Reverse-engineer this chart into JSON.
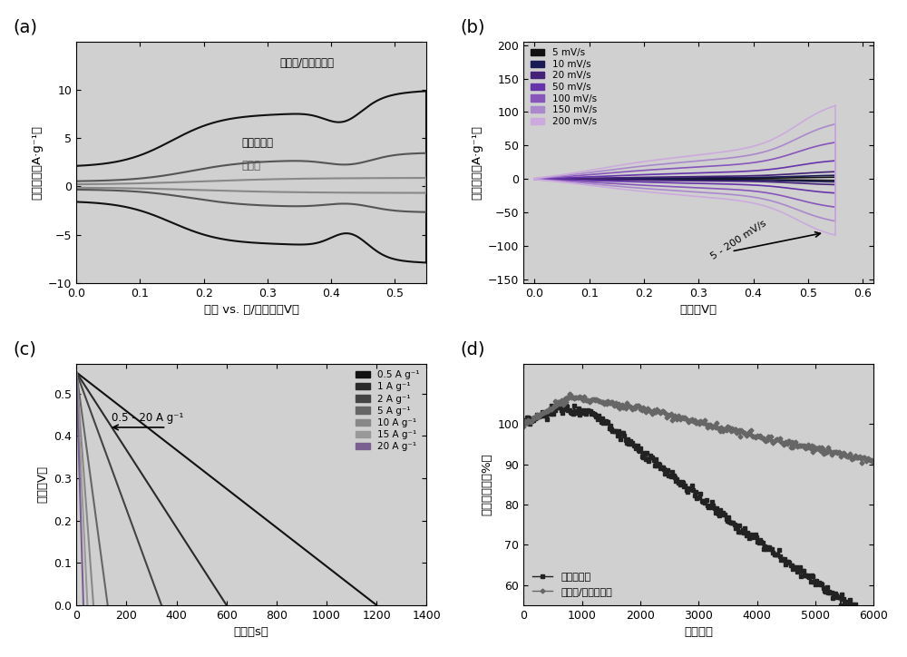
{
  "fig_width": 10.0,
  "fig_height": 7.24,
  "panel_bg": "#d0d0d0",
  "a_xlabel": "电势 vs. 汞/氧化汞（V）",
  "a_ylabel": "电流密度（A·g⁻¹）",
  "a_xlim": [
    0.0,
    0.55
  ],
  "a_ylim": [
    -10,
    15
  ],
  "a_xticks": [
    0.0,
    0.1,
    0.2,
    0.3,
    0.4,
    0.5
  ],
  "a_yticks": [
    -10,
    -5,
    0,
    5,
    10
  ],
  "a_label0": "硫化馒/四氧化三饒",
  "a_label1": "四氧化三饒",
  "a_label2": "硫化馒",
  "b_xlabel": "电势（V）",
  "b_ylabel": "电流密度（A·g⁻¹）",
  "b_xlim": [
    -0.02,
    0.62
  ],
  "b_ylim": [
    -155,
    205
  ],
  "b_xticks": [
    0.0,
    0.1,
    0.2,
    0.3,
    0.4,
    0.5,
    0.6
  ],
  "b_yticks": [
    -150,
    -100,
    -50,
    0,
    50,
    100,
    150,
    200
  ],
  "b_scan_rates": [
    5,
    10,
    20,
    50,
    100,
    150,
    200
  ],
  "b_labels": [
    "5 mV/s",
    "10 mV/s",
    "20 mV/s",
    "50 mV/s",
    "100 mV/s",
    "150 mV/s",
    "200 mV/s"
  ],
  "b_colors": [
    "#111111",
    "#1a1a55",
    "#442277",
    "#6633aa",
    "#8855bb",
    "#aa88cc",
    "#ccaadd"
  ],
  "b_arrow_label": "5 - 200 mV/s",
  "c_xlabel": "时间（s）",
  "c_ylabel": "电势（V）",
  "c_xlim": [
    0,
    1400
  ],
  "c_ylim": [
    0.0,
    0.57
  ],
  "c_xticks": [
    0,
    200,
    400,
    600,
    800,
    1000,
    1200,
    1400
  ],
  "c_yticks": [
    0.0,
    0.1,
    0.2,
    0.3,
    0.4,
    0.5
  ],
  "c_durations": [
    1200,
    600,
    340,
    125,
    68,
    44,
    28
  ],
  "c_labels": [
    "0.5 A g⁻¹",
    "1 A g⁻¹",
    "2 A g⁻¹",
    "5 A g⁻¹",
    "10 A g⁻¹",
    "15 A g⁻¹",
    "20 A g⁻¹"
  ],
  "c_colors": [
    "#111111",
    "#2a2a2a",
    "#444444",
    "#666666",
    "#888888",
    "#999999",
    "#7a6090"
  ],
  "c_arrow_label": "0.5 - 20 A g⁻¹",
  "d_xlabel": "循环圈数",
  "d_ylabel": "容量保持率（%）",
  "d_xlim": [
    0,
    6000
  ],
  "d_ylim": [
    55,
    115
  ],
  "d_xticks": [
    0,
    1000,
    2000,
    3000,
    4000,
    5000,
    6000
  ],
  "d_yticks": [
    60,
    70,
    80,
    90,
    100
  ],
  "d_label0": "四氧化三饒",
  "d_label1": "硫化馒/四氧化三饒",
  "d_color0": "#222222",
  "d_color1": "#666666"
}
